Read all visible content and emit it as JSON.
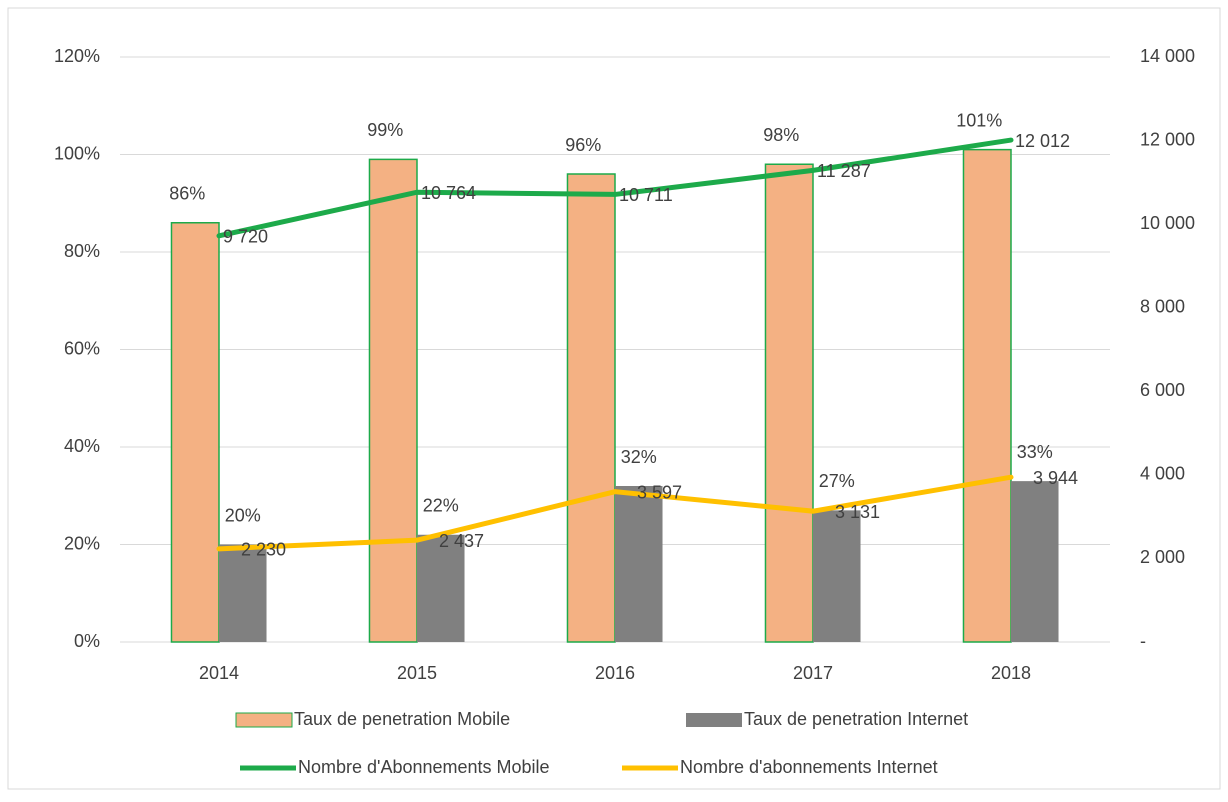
{
  "chart_data": {
    "type": "bar-line",
    "categories": [
      "2014",
      "2015",
      "2016",
      "2017",
      "2018"
    ],
    "series": [
      {
        "name": "Taux de penetration Mobile",
        "color": "#F4B183",
        "values": [
          86,
          99,
          96,
          98,
          101
        ],
        "value_labels": [
          "86%",
          "99%",
          "96%",
          "98%",
          "101%"
        ]
      },
      {
        "name": "Taux de penetration Internet",
        "color": "#808080",
        "values": [
          20,
          22,
          32,
          27,
          33
        ],
        "value_labels": [
          "20%",
          "22%",
          "32%",
          "27%",
          "33%"
        ]
      },
      {
        "name": "Nombre d'Abonnements Mobile",
        "color": "#1DAA4A",
        "axis": "y2",
        "values": [
          9720,
          10764,
          10711,
          11287,
          12012
        ],
        "value_labels": [
          "9 720",
          "10 764",
          "10 711",
          "11 287",
          "12 012"
        ]
      },
      {
        "name": "Nombre d'abonnements Internet",
        "color": "#FFC000",
        "axis": "y2",
        "values": [
          2230,
          2437,
          3597,
          3131,
          3944
        ],
        "value_labels": [
          "2 230",
          "2 437",
          "3 597",
          "3 131",
          "3 944"
        ]
      }
    ],
    "ylim": [
      0,
      120
    ],
    "yticks": [
      {
        "value": 0,
        "label": "0%"
      },
      {
        "value": 20,
        "label": "20%"
      },
      {
        "value": 40,
        "label": "40%"
      },
      {
        "value": 60,
        "label": "60%"
      },
      {
        "value": 80,
        "label": "80%"
      },
      {
        "value": 100,
        "label": "100%"
      },
      {
        "value": 120,
        "label": "120%"
      }
    ],
    "y2lim": [
      0,
      14000
    ],
    "y2ticks": [
      {
        "value": 0,
        "label": "-"
      },
      {
        "value": 2000,
        "label": "2 000"
      },
      {
        "value": 4000,
        "label": "4 000"
      },
      {
        "value": 6000,
        "label": "6 000"
      },
      {
        "value": 8000,
        "label": "8 000"
      },
      {
        "value": 10000,
        "label": "10 000"
      },
      {
        "value": 12000,
        "label": "12 000"
      },
      {
        "value": 14000,
        "label": "14 000"
      }
    ],
    "grid": true,
    "bar_edge_color": "#1DAA4A"
  }
}
